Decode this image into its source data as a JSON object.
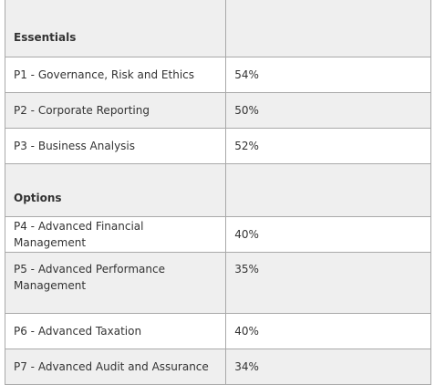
{
  "sections": [
    {
      "heading": "Essentials",
      "rows": [
        {
          "paper": "P1  - Governance, Risk and Ethics",
          "rate": "54%"
        },
        {
          "paper": "P2 - Corporate Reporting",
          "rate": "50%"
        },
        {
          "paper": "P3 - Business Analysis",
          "rate": "52%"
        }
      ]
    },
    {
      "heading": "Options",
      "rows": [
        {
          "paper": "P4 - Advanced Financial Management",
          "rate": "40%"
        },
        {
          "paper": "P5 - Advanced Performance Management",
          "rate": "35%"
        },
        {
          "paper": "P6 - Advanced Taxation",
          "rate": "40%"
        },
        {
          "paper": "P7 - Advanced Audit and Assurance",
          "rate": "34%"
        }
      ]
    }
  ]
}
